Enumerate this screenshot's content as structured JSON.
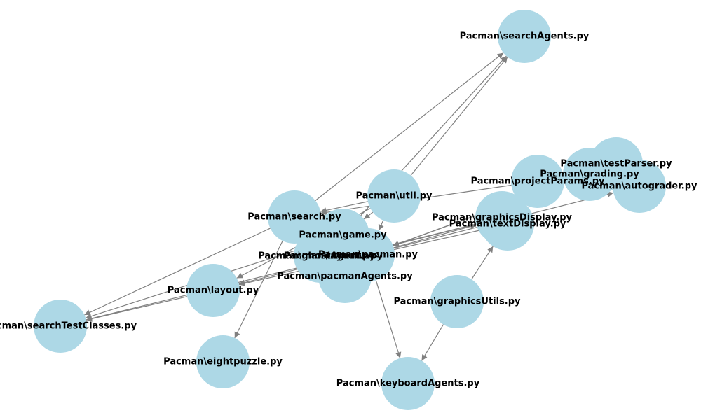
{
  "colors": {
    "node_fill": "#add8e6",
    "edge": "#808080",
    "label": "#000000"
  },
  "nodes": [
    {
      "id": "searchAgents",
      "label": "Pacman\\searchAgents.py"
    },
    {
      "id": "testParser",
      "label": "Pacman\\testParser.py"
    },
    {
      "id": "grading",
      "label": "Pacman\\grading.py"
    },
    {
      "id": "autograder",
      "label": "Pacman\\autograder.py"
    },
    {
      "id": "projectParams",
      "label": "Pacman\\projectParams.py"
    },
    {
      "id": "util",
      "label": "Pacman\\util.py"
    },
    {
      "id": "search",
      "label": "Pacman\\search.py"
    },
    {
      "id": "game",
      "label": "Pacman\\game.py"
    },
    {
      "id": "graphicsDisplay",
      "label": "Pacman\\graphicsDisplay.py"
    },
    {
      "id": "textDisplay",
      "label": "Pacman\\textDisplay.py"
    },
    {
      "id": "pacman",
      "label": "Pacman\\pacman.py"
    },
    {
      "id": "ghostAgents",
      "label": "Pacman\\ghostAgents.py"
    },
    {
      "id": "layout2",
      "label": "Pacman\\layout.py"
    },
    {
      "id": "pacmanAgents",
      "label": "Pacman\\pacmanAgents.py"
    },
    {
      "id": "layout",
      "label": "Pacman\\layout.py"
    },
    {
      "id": "graphicsUtils",
      "label": "Pacman\\graphicsUtils.py"
    },
    {
      "id": "searchTestClasses",
      "label": "Pacman\\searchTestClasses.py"
    },
    {
      "id": "eightpuzzle",
      "label": "Pacman\\eightpuzzle.py"
    },
    {
      "id": "keyboardAgents",
      "label": "Pacman\\keyboardAgents.py"
    }
  ],
  "edges": [
    [
      "search",
      "searchAgents"
    ],
    [
      "util",
      "searchAgents"
    ],
    [
      "game",
      "searchAgents"
    ],
    [
      "util",
      "search"
    ],
    [
      "util",
      "layout"
    ],
    [
      "util",
      "game"
    ],
    [
      "util",
      "pacman"
    ],
    [
      "search",
      "eightpuzzle"
    ],
    [
      "search",
      "searchTestClasses"
    ],
    [
      "layout",
      "searchTestClasses"
    ],
    [
      "game",
      "searchTestClasses"
    ],
    [
      "graphicsDisplay",
      "searchTestClasses"
    ],
    [
      "textDisplay",
      "layout"
    ],
    [
      "graphicsDisplay",
      "layout"
    ],
    [
      "projectParams",
      "search"
    ],
    [
      "grading",
      "pacman"
    ],
    [
      "testParser",
      "pacman"
    ],
    [
      "pacman",
      "autograder"
    ],
    [
      "graphicsUtils",
      "textDisplay"
    ],
    [
      "graphicsUtils",
      "keyboardAgents"
    ],
    [
      "pacman",
      "keyboardAgents"
    ],
    [
      "pacman",
      "graphicsDisplay"
    ]
  ]
}
